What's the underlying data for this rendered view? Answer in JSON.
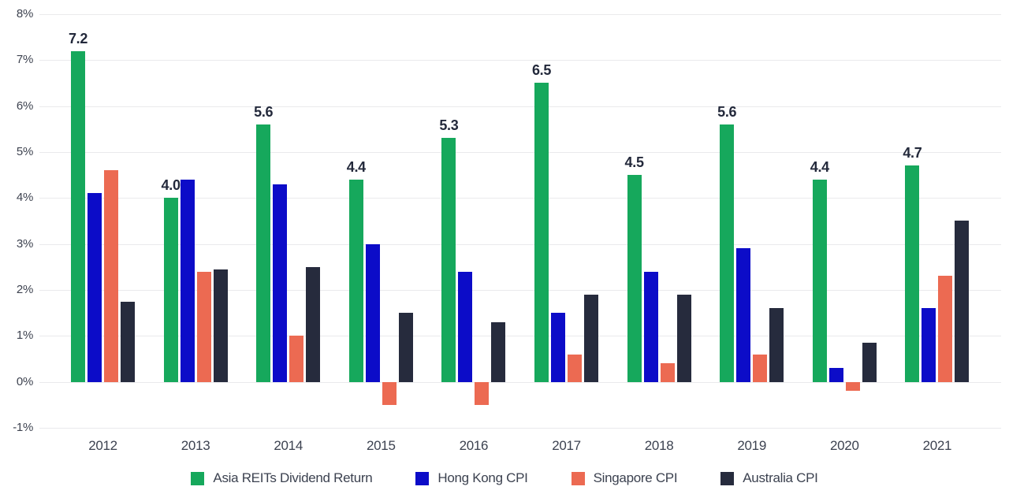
{
  "chart_data": {
    "type": "bar",
    "title": "",
    "categories": [
      "2012",
      "2013",
      "2014",
      "2015",
      "2016",
      "2017",
      "2018",
      "2019",
      "2020",
      "2021"
    ],
    "series": [
      {
        "name": "Asia REITs Dividend Return",
        "color": "#16A85C",
        "values": [
          7.2,
          4.0,
          5.6,
          4.4,
          5.3,
          6.5,
          4.5,
          5.6,
          4.4,
          4.7
        ],
        "data_labels": [
          "7.2",
          "4.0",
          "5.6",
          "4.4",
          "5.3",
          "6.5",
          "4.5",
          "5.6",
          "4.4",
          "4.7"
        ]
      },
      {
        "name": "Hong Kong CPI",
        "color": "#0C0CC8",
        "values": [
          4.1,
          4.4,
          4.3,
          3.0,
          2.4,
          1.5,
          2.4,
          2.9,
          0.3,
          1.6
        ],
        "data_labels": null
      },
      {
        "name": "Singapore CPI",
        "color": "#EC6A52",
        "values": [
          4.6,
          2.4,
          1.0,
          -0.5,
          -0.5,
          0.6,
          0.4,
          0.6,
          -0.2,
          2.3
        ],
        "data_labels": null
      },
      {
        "name": "Australia CPI",
        "color": "#262B3D",
        "values": [
          1.75,
          2.45,
          2.5,
          1.5,
          1.3,
          1.9,
          1.9,
          1.6,
          0.85,
          3.5
        ],
        "data_labels": null
      }
    ],
    "y_axis": {
      "tick_labels": [
        "8%",
        "7%",
        "6%",
        "5%",
        "4%",
        "3%",
        "2%",
        "1%",
        "0%",
        "-1%"
      ],
      "max": 8,
      "min": -1,
      "unit_suffix": "%"
    },
    "grid": "horizontal",
    "legend_position": "bottom",
    "xlabel": "",
    "ylabel": ""
  }
}
